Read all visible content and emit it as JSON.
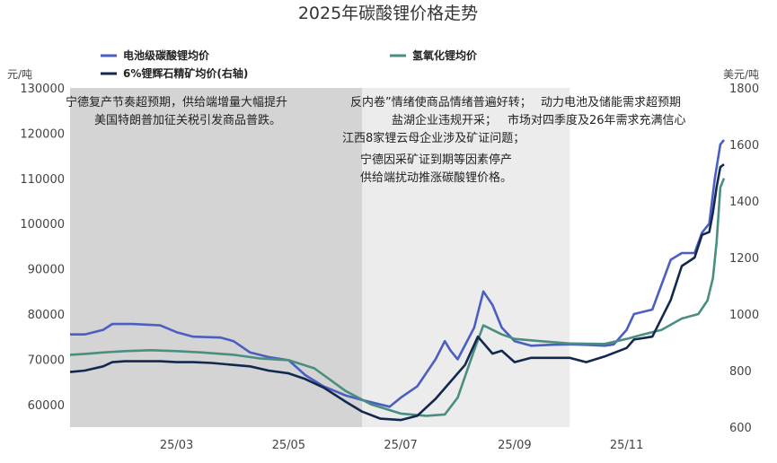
{
  "chart_data": {
    "type": "line",
    "title": "2025年碳酸锂价格走势",
    "left_unit": "元/吨",
    "right_unit": "美元/吨",
    "ylim_left": [
      55000,
      130000
    ],
    "ylim_right": [
      600,
      1800
    ],
    "left_ticks": [
      "60000",
      "70000",
      "80000",
      "90000",
      "100000",
      "110000",
      "120000",
      "130000"
    ],
    "right_ticks": [
      "600",
      "800",
      "1000",
      "1200",
      "1400",
      "1600",
      "1800"
    ],
    "x_ticks": [
      "25/03",
      "25/05",
      "25/07",
      "25/09",
      "25/11"
    ],
    "x_tick_dates": [
      "2025-03-01",
      "2025-05-01",
      "2025-07-01",
      "2025-09-01",
      "2025-11-01"
    ],
    "x_range": [
      "2025-01-02",
      "2025-12-24"
    ],
    "shaded_periods": [
      {
        "start": "2025-01-02",
        "end": "2025-06-10",
        "color": "#d4d4d4"
      },
      {
        "start": "2025-06-10",
        "end": "2025-10-01",
        "color": "#ececec"
      }
    ],
    "annotations": [
      "宁德复产节奏超预期，供给端增量大幅提升",
      "美国特朗普加征关税引发商品普跌。",
      "反内卷”情绪使商品情绪普遍好转；",
      "盐湖企业违规开采；",
      "江西8家锂云母企业涉及矿证问题；",
      "宁德因采矿证到期等因素停产",
      "供给端扰动推涨碳酸锂价格。",
      "动力电池及储能需求超预期",
      "市场对四季度及26年需求充满信心"
    ],
    "series": [
      {
        "name": "电池级碳酸锂均价",
        "axis": "left",
        "color": "#4a5fc1",
        "points": [
          [
            "2025-01-02",
            75500
          ],
          [
            "2025-01-10",
            75500
          ],
          [
            "2025-01-20",
            76500
          ],
          [
            "2025-01-25",
            77800
          ],
          [
            "2025-02-05",
            77800
          ],
          [
            "2025-02-20",
            77500
          ],
          [
            "2025-03-01",
            76000
          ],
          [
            "2025-03-10",
            75000
          ],
          [
            "2025-03-25",
            74800
          ],
          [
            "2025-04-01",
            74000
          ],
          [
            "2025-04-10",
            71500
          ],
          [
            "2025-04-20",
            70500
          ],
          [
            "2025-05-01",
            69800
          ],
          [
            "2025-05-10",
            66500
          ],
          [
            "2025-05-20",
            64000
          ],
          [
            "2025-06-01",
            62000
          ],
          [
            "2025-06-10",
            61000
          ],
          [
            "2025-06-20",
            60000
          ],
          [
            "2025-06-25",
            59500
          ],
          [
            "2025-07-01",
            61500
          ],
          [
            "2025-07-10",
            64000
          ],
          [
            "2025-07-20",
            70000
          ],
          [
            "2025-07-25",
            74000
          ],
          [
            "2025-07-28",
            72000
          ],
          [
            "2025-08-01",
            70000
          ],
          [
            "2025-08-10",
            77000
          ],
          [
            "2025-08-15",
            85000
          ],
          [
            "2025-08-20",
            82000
          ],
          [
            "2025-08-25",
            77000
          ],
          [
            "2025-09-01",
            74000
          ],
          [
            "2025-09-10",
            73000
          ],
          [
            "2025-09-20",
            73200
          ],
          [
            "2025-10-01",
            73300
          ],
          [
            "2025-10-10",
            73200
          ],
          [
            "2025-10-20",
            73000
          ],
          [
            "2025-10-25",
            73300
          ],
          [
            "2025-11-01",
            76500
          ],
          [
            "2025-11-05",
            80000
          ],
          [
            "2025-11-15",
            81000
          ],
          [
            "2025-11-25",
            92000
          ],
          [
            "2025-12-01",
            93500
          ],
          [
            "2025-12-08",
            93500
          ],
          [
            "2025-12-12",
            98000
          ],
          [
            "2025-12-16",
            100000
          ],
          [
            "2025-12-19",
            110000
          ],
          [
            "2025-12-22",
            117500
          ],
          [
            "2025-12-24",
            118500
          ]
        ]
      },
      {
        "name": "氢氧化锂均价",
        "axis": "left",
        "color": "#4a8e80",
        "points": [
          [
            "2025-01-02",
            71000
          ],
          [
            "2025-01-10",
            71200
          ],
          [
            "2025-01-20",
            71500
          ],
          [
            "2025-02-01",
            71800
          ],
          [
            "2025-02-15",
            72000
          ],
          [
            "2025-03-01",
            71800
          ],
          [
            "2025-03-15",
            71500
          ],
          [
            "2025-04-01",
            71000
          ],
          [
            "2025-04-15",
            70200
          ],
          [
            "2025-05-01",
            69800
          ],
          [
            "2025-05-15",
            68000
          ],
          [
            "2025-06-01",
            63000
          ],
          [
            "2025-06-15",
            60000
          ],
          [
            "2025-07-01",
            58000
          ],
          [
            "2025-07-15",
            57500
          ],
          [
            "2025-07-25",
            57800
          ],
          [
            "2025-08-01",
            61500
          ],
          [
            "2025-08-10",
            72000
          ],
          [
            "2025-08-15",
            77500
          ],
          [
            "2025-08-25",
            75500
          ],
          [
            "2025-09-01",
            74500
          ],
          [
            "2025-09-15",
            74000
          ],
          [
            "2025-10-01",
            73500
          ],
          [
            "2025-10-20",
            73400
          ],
          [
            "2025-11-01",
            74500
          ],
          [
            "2025-11-10",
            75500
          ],
          [
            "2025-11-20",
            76500
          ],
          [
            "2025-12-01",
            79000
          ],
          [
            "2025-12-10",
            80000
          ],
          [
            "2025-12-15",
            83000
          ],
          [
            "2025-12-18",
            88000
          ],
          [
            "2025-12-20",
            96000
          ],
          [
            "2025-12-22",
            108000
          ],
          [
            "2025-12-24",
            110000
          ]
        ]
      },
      {
        "name": "6%锂辉石精矿均价(右轴)",
        "axis": "right",
        "color": "#14284f",
        "points": [
          [
            "2025-01-02",
            795
          ],
          [
            "2025-01-10",
            800
          ],
          [
            "2025-01-20",
            815
          ],
          [
            "2025-01-25",
            830
          ],
          [
            "2025-02-01",
            833
          ],
          [
            "2025-02-20",
            833
          ],
          [
            "2025-03-01",
            830
          ],
          [
            "2025-03-10",
            830
          ],
          [
            "2025-03-20",
            827
          ],
          [
            "2025-04-01",
            820
          ],
          [
            "2025-04-10",
            815
          ],
          [
            "2025-04-20",
            800
          ],
          [
            "2025-05-01",
            790
          ],
          [
            "2025-05-10",
            770
          ],
          [
            "2025-05-20",
            740
          ],
          [
            "2025-06-01",
            690
          ],
          [
            "2025-06-10",
            655
          ],
          [
            "2025-06-20",
            630
          ],
          [
            "2025-07-01",
            625
          ],
          [
            "2025-07-10",
            640
          ],
          [
            "2025-07-20",
            700
          ],
          [
            "2025-07-28",
            760
          ],
          [
            "2025-08-05",
            820
          ],
          [
            "2025-08-12",
            920
          ],
          [
            "2025-08-20",
            860
          ],
          [
            "2025-08-25",
            870
          ],
          [
            "2025-09-01",
            830
          ],
          [
            "2025-09-10",
            845
          ],
          [
            "2025-09-20",
            845
          ],
          [
            "2025-10-01",
            845
          ],
          [
            "2025-10-10",
            830
          ],
          [
            "2025-10-20",
            850
          ],
          [
            "2025-11-01",
            880
          ],
          [
            "2025-11-05",
            910
          ],
          [
            "2025-11-15",
            920
          ],
          [
            "2025-11-25",
            1050
          ],
          [
            "2025-12-01",
            1170
          ],
          [
            "2025-12-08",
            1200
          ],
          [
            "2025-12-12",
            1280
          ],
          [
            "2025-12-16",
            1290
          ],
          [
            "2025-12-18",
            1360
          ],
          [
            "2025-12-20",
            1450
          ],
          [
            "2025-12-22",
            1520
          ],
          [
            "2025-12-24",
            1530
          ]
        ]
      }
    ]
  }
}
